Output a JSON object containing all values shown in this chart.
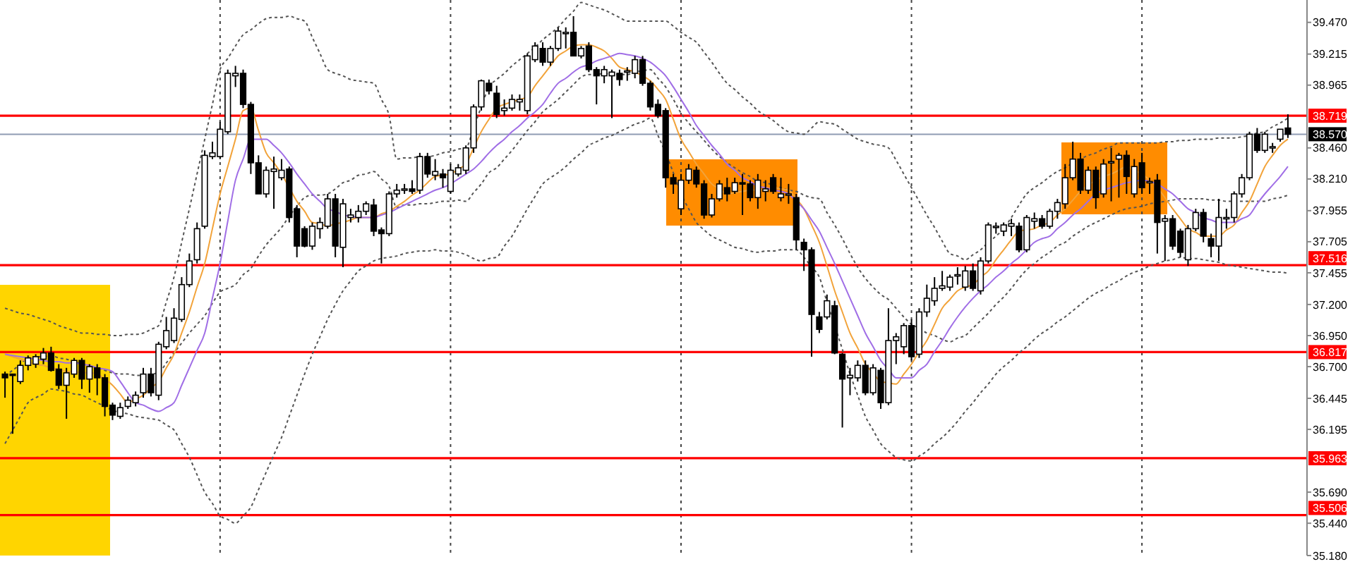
{
  "chart_data": {
    "type": "candlestick",
    "categories": [
      null,
      null,
      null,
      null,
      null,
      null,
      null,
      null,
      null,
      null,
      null,
      null,
      null,
      null,
      null,
      null,
      null,
      null,
      null,
      null,
      null,
      null,
      null,
      null,
      null,
      null,
      null,
      null,
      null,
      null,
      null,
      null,
      null,
      null,
      null,
      null,
      null,
      null,
      null,
      null,
      null,
      null,
      null,
      null,
      null,
      null,
      null,
      null,
      null,
      null,
      null,
      null,
      null,
      null,
      null,
      null,
      null,
      null,
      null,
      null,
      null,
      null,
      null,
      null,
      null,
      null,
      null,
      null,
      null,
      null,
      null,
      null,
      null,
      null,
      null,
      null,
      null,
      null,
      null,
      null,
      null,
      null,
      null,
      null,
      null,
      null,
      null,
      null,
      null,
      null,
      null,
      null,
      null,
      null,
      null,
      null,
      null,
      null,
      null,
      null,
      null,
      null,
      null,
      null,
      null,
      null,
      null,
      null,
      null,
      null,
      null,
      null,
      null,
      null,
      null,
      null,
      null,
      null,
      null,
      null,
      null,
      null,
      null,
      null,
      null,
      null,
      null,
      null,
      null,
      null,
      null,
      null,
      null,
      null,
      null,
      null,
      null,
      null,
      null,
      null,
      null,
      null,
      null,
      null,
      null,
      null,
      null,
      null,
      null,
      null,
      null,
      null,
      null,
      null,
      null,
      null,
      null,
      null,
      null,
      null,
      null,
      null,
      null,
      null,
      null,
      null,
      null,
      null
    ],
    "ohlc": [
      [
        36.64,
        36.66,
        36.45,
        36.61
      ],
      [
        36.64,
        36.64,
        36.16,
        36.63
      ],
      [
        36.58,
        36.75,
        36.56,
        36.71
      ],
      [
        36.71,
        36.79,
        36.67,
        36.77
      ],
      [
        36.72,
        36.8,
        36.69,
        36.78
      ],
      [
        36.76,
        36.85,
        36.72,
        36.81
      ],
      [
        36.81,
        36.86,
        36.66,
        36.67
      ],
      [
        36.68,
        36.72,
        36.52,
        36.55
      ],
      [
        36.55,
        36.69,
        36.28,
        36.65
      ],
      [
        36.64,
        36.77,
        36.61,
        36.75
      ],
      [
        36.75,
        36.77,
        36.52,
        36.6
      ],
      [
        36.6,
        36.72,
        36.49,
        36.7
      ],
      [
        36.69,
        36.72,
        36.47,
        36.61
      ],
      [
        36.61,
        36.64,
        36.3,
        36.38
      ],
      [
        36.39,
        36.41,
        36.27,
        36.31
      ],
      [
        36.3,
        36.41,
        36.28,
        36.37
      ],
      [
        36.38,
        36.46,
        36.36,
        36.43
      ],
      [
        36.41,
        36.5,
        36.38,
        36.47
      ],
      [
        36.49,
        36.69,
        36.45,
        36.64
      ],
      [
        36.64,
        36.69,
        36.46,
        36.49
      ],
      [
        36.47,
        36.9,
        36.43,
        36.88
      ],
      [
        36.86,
        37.1,
        36.84,
        36.99
      ],
      [
        36.91,
        37.17,
        36.89,
        37.09
      ],
      [
        37.08,
        37.42,
        37.06,
        37.36
      ],
      [
        37.36,
        37.61,
        37.34,
        37.55
      ],
      [
        37.56,
        37.86,
        37.53,
        37.81
      ],
      [
        37.83,
        38.44,
        37.81,
        38.4
      ],
      [
        38.39,
        38.51,
        38.37,
        38.42
      ],
      [
        38.39,
        38.67,
        38.37,
        38.61
      ],
      [
        38.59,
        39.09,
        38.57,
        39.06
      ],
      [
        39.04,
        39.12,
        38.95,
        39.06
      ],
      [
        39.06,
        39.09,
        38.78,
        38.81
      ],
      [
        38.81,
        38.83,
        38.25,
        38.34
      ],
      [
        38.34,
        38.4,
        38.09,
        38.09
      ],
      [
        38.09,
        38.31,
        38.06,
        38.28
      ],
      [
        38.27,
        38.39,
        37.97,
        38.29
      ],
      [
        38.22,
        38.37,
        38.2,
        38.28
      ],
      [
        38.29,
        38.31,
        37.86,
        37.9
      ],
      [
        37.97,
        38.0,
        37.58,
        37.67
      ],
      [
        37.81,
        37.83,
        37.66,
        37.67
      ],
      [
        37.67,
        37.86,
        37.64,
        37.83
      ],
      [
        37.81,
        37.9,
        37.73,
        37.86
      ],
      [
        37.83,
        38.09,
        37.81,
        38.05
      ],
      [
        38.05,
        38.09,
        37.58,
        37.67
      ],
      [
        37.66,
        38.05,
        37.5,
        38.01
      ],
      [
        37.9,
        37.97,
        37.86,
        37.92
      ],
      [
        37.9,
        38.0,
        37.86,
        37.95
      ],
      [
        37.95,
        38.03,
        37.92,
        38.01
      ],
      [
        38.0,
        38.05,
        37.75,
        37.79
      ],
      [
        37.8,
        37.82,
        37.53,
        37.77
      ],
      [
        37.77,
        38.11,
        37.75,
        38.09
      ],
      [
        38.09,
        38.17,
        38.06,
        38.12
      ],
      [
        38.12,
        38.17,
        38.09,
        38.13
      ],
      [
        38.13,
        38.2,
        38.09,
        38.11
      ],
      [
        38.12,
        38.42,
        38.09,
        38.39
      ],
      [
        38.39,
        38.42,
        38.22,
        38.25
      ],
      [
        38.24,
        38.37,
        38.2,
        38.27
      ],
      [
        38.25,
        38.29,
        38.14,
        38.22
      ],
      [
        38.11,
        38.33,
        38.09,
        38.28
      ],
      [
        38.25,
        38.33,
        38.23,
        38.3
      ],
      [
        38.28,
        38.48,
        38.25,
        38.46
      ],
      [
        38.46,
        38.81,
        38.42,
        38.79
      ],
      [
        38.79,
        39.01,
        38.76,
        39.0
      ],
      [
        38.98,
        39.01,
        38.89,
        38.92
      ],
      [
        38.9,
        38.96,
        38.7,
        38.73
      ],
      [
        38.76,
        38.85,
        38.72,
        38.78
      ],
      [
        38.78,
        38.89,
        38.76,
        38.85
      ],
      [
        38.83,
        38.89,
        38.76,
        38.85
      ],
      [
        38.76,
        39.22,
        38.73,
        39.2
      ],
      [
        39.17,
        39.31,
        39.15,
        39.28
      ],
      [
        39.26,
        39.31,
        39.12,
        39.15
      ],
      [
        39.15,
        39.28,
        39.12,
        39.26
      ],
      [
        39.26,
        39.43,
        39.24,
        39.4
      ],
      [
        39.38,
        39.43,
        39.26,
        39.39
      ],
      [
        39.39,
        39.52,
        39.2,
        39.2
      ],
      [
        39.2,
        39.28,
        39.18,
        39.26
      ],
      [
        39.28,
        39.31,
        39.07,
        39.09
      ],
      [
        39.09,
        39.11,
        38.81,
        39.04
      ],
      [
        39.04,
        39.12,
        38.98,
        39.09
      ],
      [
        39.04,
        39.09,
        38.7,
        39.07
      ],
      [
        39.06,
        39.09,
        38.96,
        39.01
      ],
      [
        39.07,
        39.11,
        39.0,
        39.08
      ],
      [
        39.06,
        39.2,
        39.02,
        39.17
      ],
      [
        39.17,
        39.2,
        38.96,
        38.98
      ],
      [
        38.98,
        39.0,
        38.76,
        38.79
      ],
      [
        38.81,
        38.85,
        38.7,
        38.72
      ],
      [
        38.76,
        38.78,
        38.14,
        38.22
      ],
      [
        38.22,
        38.25,
        38.09,
        38.17
      ],
      [
        37.97,
        38.25,
        37.92,
        38.2
      ],
      [
        38.2,
        38.33,
        38.17,
        38.29
      ],
      [
        38.28,
        38.31,
        38.14,
        38.17
      ],
      [
        38.17,
        38.2,
        37.89,
        37.92
      ],
      [
        37.92,
        38.09,
        37.9,
        38.05
      ],
      [
        38.05,
        38.2,
        38.03,
        38.17
      ],
      [
        38.14,
        38.22,
        38.03,
        38.09
      ],
      [
        38.11,
        38.22,
        38.09,
        38.18
      ],
      [
        38.18,
        38.25,
        37.92,
        38.17
      ],
      [
        38.17,
        38.2,
        38.03,
        38.06
      ],
      [
        38.06,
        38.25,
        37.97,
        38.2
      ],
      [
        38.11,
        38.2,
        38.03,
        38.13
      ],
      [
        38.22,
        38.25,
        38.09,
        38.11
      ],
      [
        38.06,
        38.22,
        38.03,
        38.09
      ],
      [
        38.08,
        38.17,
        38.01,
        38.09
      ],
      [
        38.06,
        38.09,
        37.64,
        37.72
      ],
      [
        37.7,
        37.73,
        37.47,
        37.64
      ],
      [
        37.64,
        37.66,
        36.78,
        37.12
      ],
      [
        37.1,
        37.14,
        36.97,
        37.0
      ],
      [
        37.1,
        37.28,
        37.08,
        37.23
      ],
      [
        37.19,
        37.23,
        36.8,
        36.81
      ],
      [
        36.8,
        36.81,
        36.21,
        36.6
      ],
      [
        36.61,
        36.69,
        36.47,
        36.63
      ],
      [
        36.61,
        36.75,
        36.58,
        36.71
      ],
      [
        36.71,
        36.75,
        36.47,
        36.49
      ],
      [
        36.49,
        36.72,
        36.47,
        36.69
      ],
      [
        36.67,
        36.69,
        36.36,
        36.41
      ],
      [
        36.41,
        37.17,
        36.39,
        36.91
      ],
      [
        36.91,
        36.97,
        36.72,
        36.94
      ],
      [
        36.86,
        37.05,
        36.8,
        37.03
      ],
      [
        37.03,
        37.08,
        36.75,
        36.78
      ],
      [
        36.8,
        37.17,
        36.77,
        37.14
      ],
      [
        37.14,
        37.36,
        37.1,
        37.25
      ],
      [
        37.23,
        37.42,
        37.19,
        37.33
      ],
      [
        37.33,
        37.47,
        37.31,
        37.35
      ],
      [
        37.34,
        37.44,
        37.31,
        37.42
      ],
      [
        37.43,
        37.5,
        37.36,
        37.44
      ],
      [
        37.34,
        37.51,
        37.31,
        37.47
      ],
      [
        37.47,
        37.53,
        37.31,
        37.33
      ],
      [
        37.31,
        37.58,
        37.28,
        37.55
      ],
      [
        37.55,
        37.86,
        37.53,
        37.84
      ],
      [
        37.82,
        37.86,
        37.77,
        37.83
      ],
      [
        37.79,
        37.86,
        37.75,
        37.84
      ],
      [
        37.83,
        37.89,
        37.75,
        37.85
      ],
      [
        37.83,
        37.86,
        37.62,
        37.64
      ],
      [
        37.64,
        37.92,
        37.62,
        37.9
      ],
      [
        37.87,
        37.94,
        37.81,
        37.89
      ],
      [
        37.89,
        37.92,
        37.81,
        37.83
      ],
      [
        37.83,
        37.97,
        37.81,
        37.95
      ],
      [
        37.95,
        38.05,
        37.89,
        38.02
      ],
      [
        38.01,
        38.33,
        37.97,
        38.22
      ],
      [
        38.22,
        38.51,
        38.2,
        38.37
      ],
      [
        38.37,
        38.42,
        38.09,
        38.12
      ],
      [
        38.12,
        38.31,
        38.09,
        38.28
      ],
      [
        38.28,
        38.31,
        37.97,
        38.06
      ],
      [
        38.09,
        38.37,
        38.06,
        38.33
      ],
      [
        38.34,
        38.46,
        38.03,
        38.35
      ],
      [
        38.37,
        38.42,
        38.06,
        38.4
      ],
      [
        38.4,
        38.44,
        38.09,
        38.23
      ],
      [
        38.09,
        38.37,
        38.06,
        38.31
      ],
      [
        38.34,
        38.42,
        38.09,
        38.14
      ],
      [
        38.18,
        38.22,
        38.09,
        38.19
      ],
      [
        38.2,
        38.25,
        37.61,
        37.86
      ],
      [
        37.87,
        37.92,
        37.55,
        37.89
      ],
      [
        37.89,
        37.92,
        37.64,
        37.67
      ],
      [
        37.79,
        37.81,
        37.58,
        37.62
      ],
      [
        37.56,
        37.84,
        37.51,
        37.81
      ],
      [
        37.81,
        37.97,
        37.79,
        37.94
      ],
      [
        37.94,
        37.97,
        37.7,
        37.75
      ],
      [
        37.73,
        37.77,
        37.58,
        37.67
      ],
      [
        37.67,
        38.05,
        37.55,
        37.9
      ],
      [
        37.89,
        37.97,
        37.81,
        37.9
      ],
      [
        37.9,
        38.11,
        37.86,
        38.09
      ],
      [
        38.09,
        38.25,
        38.06,
        38.22
      ],
      [
        38.22,
        38.59,
        38.2,
        38.57
      ],
      [
        38.57,
        38.62,
        38.42,
        38.44
      ],
      [
        38.44,
        38.59,
        38.42,
        38.57
      ],
      [
        38.46,
        38.5,
        38.42,
        38.47
      ],
      [
        38.53,
        38.61,
        38.51,
        38.61
      ],
      [
        38.62,
        38.73,
        38.54,
        38.57
      ]
    ],
    "series": [
      {
        "type": "line",
        "color": "#555555",
        "line_style": "dotted",
        "values": [
          37.17,
          37.15,
          37.13,
          37.12,
          37.1,
          37.08,
          37.06,
          37.03,
          37.01,
          36.99,
          36.97,
          36.97,
          36.96,
          36.96,
          36.95,
          36.95,
          36.96,
          36.96,
          36.97,
          37.0,
          37.03,
          37.22,
          37.42,
          37.7,
          37.97,
          38.25,
          38.53,
          38.81,
          39.09,
          39.18,
          39.28,
          39.37,
          39.41,
          39.46,
          39.5,
          39.51,
          39.51,
          39.52,
          39.5,
          39.48,
          39.35,
          39.22,
          39.09,
          39.06,
          39.04,
          39.01,
          39.0,
          38.99,
          38.98,
          38.85,
          38.72,
          38.37,
          38.38,
          38.38,
          38.39,
          38.39,
          38.4,
          38.42,
          38.43,
          38.45,
          38.46,
          38.62,
          38.79,
          38.95,
          39.01,
          39.06,
          39.12,
          39.17,
          39.22,
          39.27,
          39.33,
          39.38,
          39.43,
          39.5,
          39.56,
          39.63,
          39.61,
          39.59,
          39.57,
          39.54,
          39.51,
          39.48,
          39.48,
          39.48,
          39.48,
          39.48,
          39.48,
          39.44,
          39.39,
          39.35,
          39.31,
          39.23,
          39.15,
          39.06,
          38.98,
          38.93,
          38.87,
          38.82,
          38.76,
          38.72,
          38.68,
          38.63,
          38.59,
          38.58,
          38.57,
          38.62,
          38.67,
          38.66,
          38.65,
          38.61,
          38.57,
          38.53,
          38.51,
          38.49,
          38.48,
          38.46,
          38.36,
          38.25,
          38.14,
          38.03,
          37.92,
          37.82,
          37.71,
          37.61,
          37.59,
          37.56,
          37.6,
          37.64,
          37.7,
          37.75,
          37.81,
          37.9,
          38.0,
          38.09,
          38.14,
          38.18,
          38.23,
          38.27,
          38.3,
          38.34,
          38.37,
          38.4,
          38.42,
          38.45,
          38.47,
          38.5,
          38.5,
          38.5,
          38.5,
          38.5,
          38.5,
          38.51,
          38.51,
          38.52,
          38.52,
          38.53,
          38.53,
          38.53,
          38.54,
          38.54,
          38.54,
          38.55,
          38.56,
          38.58,
          38.59,
          38.63,
          38.66,
          38.7
        ]
      },
      {
        "type": "line",
        "color": "#555555",
        "line_style": "dotted",
        "values": [
          36.63,
          36.67,
          36.72,
          36.77,
          36.78,
          36.78,
          36.79,
          36.77,
          36.76,
          36.74,
          36.72,
          36.71,
          36.69,
          36.67,
          36.65,
          36.64,
          36.64,
          36.63,
          36.63,
          36.64,
          36.65,
          36.73,
          36.81,
          36.89,
          36.97,
          37.04,
          37.11,
          37.21,
          37.3,
          37.33,
          37.36,
          37.44,
          37.49,
          37.59,
          37.68,
          37.75,
          37.82,
          37.91,
          37.99,
          38.06,
          38.08,
          38.08,
          38.09,
          38.13,
          38.18,
          38.2,
          38.24,
          38.25,
          38.27,
          38.21,
          38.15,
          37.98,
          38.0,
          38.0,
          38.01,
          38.01,
          38.02,
          38.03,
          38.03,
          38.04,
          38.03,
          38.1,
          38.17,
          38.26,
          38.3,
          38.37,
          38.44,
          38.52,
          38.6,
          38.67,
          38.75,
          38.8,
          38.85,
          38.91,
          38.97,
          39.03,
          39.05,
          39.05,
          39.06,
          39.05,
          39.05,
          39.05,
          39.07,
          39.08,
          39.09,
          39.02,
          38.95,
          38.85,
          38.74,
          38.66,
          38.59,
          38.52,
          38.45,
          38.39,
          38.34,
          38.3,
          38.26,
          38.23,
          38.19,
          38.18,
          38.16,
          38.14,
          38.12,
          38.11,
          38.08,
          38.06,
          38.05,
          37.94,
          37.84,
          37.73,
          37.61,
          37.5,
          37.41,
          37.34,
          37.28,
          37.24,
          37.17,
          37.1,
          37.04,
          37.01,
          36.97,
          36.95,
          36.92,
          36.9,
          36.93,
          36.95,
          37.01,
          37.07,
          37.13,
          37.2,
          37.26,
          37.33,
          37.41,
          37.48,
          37.53,
          37.58,
          37.62,
          37.67,
          37.7,
          37.75,
          37.79,
          37.83,
          37.86,
          37.89,
          37.92,
          37.95,
          37.97,
          37.98,
          37.99,
          38.01,
          38.02,
          38.03,
          38.04,
          38.05,
          38.05,
          38.05,
          38.05,
          38.04,
          38.04,
          38.03,
          38.03,
          38.03,
          38.03,
          38.03,
          38.03,
          38.05,
          38.06,
          38.08
        ]
      },
      {
        "type": "line",
        "color": "#555555",
        "line_style": "dotted",
        "values": [
          36.08,
          36.19,
          36.3,
          36.41,
          36.45,
          36.48,
          36.52,
          36.51,
          36.5,
          36.48,
          36.47,
          36.44,
          36.41,
          36.38,
          36.35,
          36.33,
          36.32,
          36.3,
          36.29,
          36.28,
          36.27,
          36.23,
          36.19,
          36.08,
          35.97,
          35.83,
          35.69,
          35.6,
          35.5,
          35.47,
          35.44,
          35.5,
          35.57,
          35.71,
          35.85,
          35.99,
          36.13,
          36.3,
          36.47,
          36.64,
          36.8,
          36.94,
          37.08,
          37.2,
          37.31,
          37.39,
          37.47,
          37.51,
          37.55,
          37.57,
          37.58,
          37.59,
          37.61,
          37.62,
          37.63,
          37.63,
          37.64,
          37.63,
          37.63,
          37.62,
          37.6,
          37.57,
          37.55,
          37.57,
          37.58,
          37.67,
          37.75,
          37.86,
          37.97,
          38.07,
          38.17,
          38.22,
          38.26,
          38.31,
          38.37,
          38.42,
          38.48,
          38.51,
          38.54,
          38.56,
          38.59,
          38.62,
          38.65,
          38.67,
          38.7,
          38.56,
          38.42,
          38.26,
          38.09,
          37.97,
          37.86,
          37.8,
          37.75,
          37.72,
          37.69,
          37.66,
          37.65,
          37.63,
          37.62,
          37.63,
          37.63,
          37.64,
          37.64,
          37.64,
          37.58,
          37.5,
          37.42,
          37.22,
          37.03,
          36.84,
          36.64,
          36.47,
          36.3,
          36.19,
          36.08,
          36.02,
          35.97,
          35.95,
          35.94,
          35.98,
          36.02,
          36.08,
          36.13,
          36.19,
          36.26,
          36.34,
          36.41,
          36.49,
          36.56,
          36.64,
          36.7,
          36.75,
          36.81,
          36.86,
          36.92,
          36.97,
          37.01,
          37.06,
          37.1,
          37.15,
          37.2,
          37.25,
          37.29,
          37.32,
          37.36,
          37.39,
          37.43,
          37.46,
          37.48,
          37.51,
          37.53,
          37.55,
          37.56,
          37.58,
          37.57,
          37.57,
          37.56,
          37.55,
          37.54,
          37.52,
          37.51,
          37.5,
          37.49,
          37.48,
          37.47,
          37.46,
          37.46,
          37.45
        ]
      },
      {
        "type": "line",
        "color": "#f2a33a",
        "values": [
          36.8,
          36.78,
          36.76,
          36.74,
          36.72,
          36.71,
          36.69,
          36.68,
          36.66,
          36.66,
          36.65,
          36.65,
          36.64,
          36.6,
          36.55,
          36.48,
          36.41,
          36.44,
          36.47,
          36.53,
          36.58,
          36.69,
          36.8,
          36.97,
          37.14,
          37.34,
          37.53,
          37.81,
          38.09,
          38.31,
          38.53,
          38.76,
          38.78,
          38.6,
          38.42,
          38.34,
          38.25,
          38.14,
          38.03,
          37.95,
          37.86,
          37.85,
          37.83,
          37.85,
          37.86,
          37.88,
          37.9,
          37.9,
          37.9,
          37.93,
          37.95,
          37.99,
          38.03,
          38.08,
          38.12,
          38.18,
          38.23,
          38.24,
          38.25,
          38.29,
          38.33,
          38.46,
          38.59,
          38.69,
          38.78,
          38.81,
          38.83,
          38.85,
          38.87,
          38.96,
          39.04,
          39.12,
          39.2,
          39.24,
          39.28,
          39.29,
          39.29,
          39.27,
          39.24,
          39.18,
          39.11,
          39.09,
          39.07,
          39.04,
          39.0,
          38.93,
          38.85,
          38.69,
          38.53,
          38.43,
          38.33,
          38.25,
          38.17,
          38.13,
          38.09,
          38.1,
          38.11,
          38.12,
          38.12,
          38.13,
          38.14,
          38.13,
          38.12,
          38.05,
          37.97,
          37.84,
          37.7,
          37.51,
          37.31,
          37.14,
          36.97,
          36.85,
          36.72,
          36.65,
          36.58,
          36.57,
          36.56,
          36.64,
          36.72,
          36.82,
          36.91,
          37.04,
          37.17,
          37.24,
          37.31,
          37.34,
          37.36,
          37.42,
          37.47,
          37.56,
          37.64,
          37.72,
          37.79,
          37.8,
          37.81,
          37.84,
          37.86,
          37.92,
          37.97,
          38.04,
          38.11,
          38.16,
          38.2,
          38.23,
          38.25,
          38.28,
          38.31,
          38.28,
          38.25,
          38.2,
          38.14,
          38.06,
          37.97,
          37.89,
          37.81,
          37.78,
          37.75,
          37.75,
          37.75,
          37.8,
          37.84,
          37.94,
          38.03,
          38.17,
          38.31,
          38.4,
          38.48,
          38.53
        ]
      },
      {
        "type": "line",
        "color": "#a06ee6",
        "values": [
          36.8,
          36.79,
          36.78,
          36.77,
          36.76,
          36.75,
          36.74,
          36.74,
          36.73,
          36.73,
          36.72,
          36.71,
          36.69,
          36.68,
          36.66,
          36.58,
          36.49,
          36.41,
          36.39,
          36.36,
          36.34,
          36.37,
          36.41,
          36.55,
          36.69,
          36.83,
          36.97,
          37.25,
          37.53,
          37.87,
          38.2,
          38.37,
          38.53,
          38.53,
          38.53,
          38.48,
          38.42,
          38.34,
          38.25,
          38.17,
          38.09,
          38.03,
          37.97,
          37.95,
          37.92,
          37.91,
          37.9,
          37.9,
          37.9,
          37.92,
          37.94,
          37.97,
          38.0,
          38.03,
          38.06,
          38.09,
          38.12,
          38.14,
          38.17,
          38.21,
          38.25,
          38.29,
          38.35,
          38.42,
          38.48,
          38.53,
          38.59,
          38.64,
          38.7,
          38.75,
          38.81,
          38.9,
          38.98,
          39.02,
          39.07,
          39.11,
          39.13,
          39.16,
          39.18,
          39.2,
          39.22,
          39.21,
          39.2,
          39.18,
          39.15,
          39.1,
          39.04,
          38.95,
          38.85,
          38.75,
          38.64,
          38.56,
          38.48,
          38.41,
          38.33,
          38.28,
          38.22,
          38.19,
          38.15,
          38.14,
          38.12,
          38.11,
          38.09,
          38.03,
          37.97,
          37.88,
          37.79,
          37.66,
          37.53,
          37.39,
          37.25,
          37.11,
          36.97,
          36.86,
          36.75,
          36.68,
          36.61,
          36.61,
          36.61,
          36.67,
          36.72,
          36.82,
          36.91,
          37.01,
          37.1,
          37.18,
          37.25,
          37.31,
          37.36,
          37.42,
          37.47,
          37.53,
          37.58,
          37.64,
          37.7,
          37.73,
          37.75,
          37.81,
          37.86,
          37.92,
          37.97,
          38.03,
          38.09,
          38.12,
          38.14,
          38.16,
          38.18,
          38.19,
          38.2,
          38.19,
          38.17,
          38.13,
          38.09,
          38.03,
          37.97,
          37.94,
          37.9,
          37.88,
          37.86,
          37.86,
          37.86,
          37.89,
          37.92,
          38.01,
          38.09,
          38.16,
          38.23,
          38.31
        ]
      }
    ],
    "ylim": [
      35.18,
      39.65
    ],
    "yticks": [
      {
        "value": 39.47,
        "label": "39.470"
      },
      {
        "value": 39.215,
        "label": "39.215"
      },
      {
        "value": 38.965,
        "label": "38.965"
      },
      {
        "value": 38.46,
        "label": "38.460"
      },
      {
        "value": 38.21,
        "label": "38.210"
      },
      {
        "value": 37.955,
        "label": "37.955"
      },
      {
        "value": 37.705,
        "label": "37.705"
      },
      {
        "value": 37.455,
        "label": "37.455"
      },
      {
        "value": 37.2,
        "label": "37.200"
      },
      {
        "value": 36.95,
        "label": "36.950"
      },
      {
        "value": 36.7,
        "label": "36.700"
      },
      {
        "value": 36.445,
        "label": "36.445"
      },
      {
        "value": 36.195,
        "label": "36.195"
      },
      {
        "value": 35.69,
        "label": "35.690"
      },
      {
        "value": 35.44,
        "label": "35.440"
      },
      {
        "value": 35.18,
        "label": "35.180"
      }
    ],
    "ref_lines": [
      {
        "axis": "y",
        "value": 38.719,
        "label": "38.719",
        "color": "#ff0000"
      },
      {
        "axis": "y",
        "value": 38.57,
        "label": "38.570",
        "color": "#8f9bb3"
      },
      {
        "axis": "y",
        "value": 37.516,
        "label": "37.516",
        "color": "#ff0000"
      },
      {
        "axis": "y",
        "value": 36.817,
        "label": "36.817",
        "color": "#ff0000"
      },
      {
        "axis": "y",
        "value": 35.963,
        "label": "35.963",
        "color": "#ff0000"
      },
      {
        "axis": "y",
        "value": 35.506,
        "label": "35.506",
        "color": "#ff0000"
      }
    ],
    "tick_labels": "y"
  }
}
